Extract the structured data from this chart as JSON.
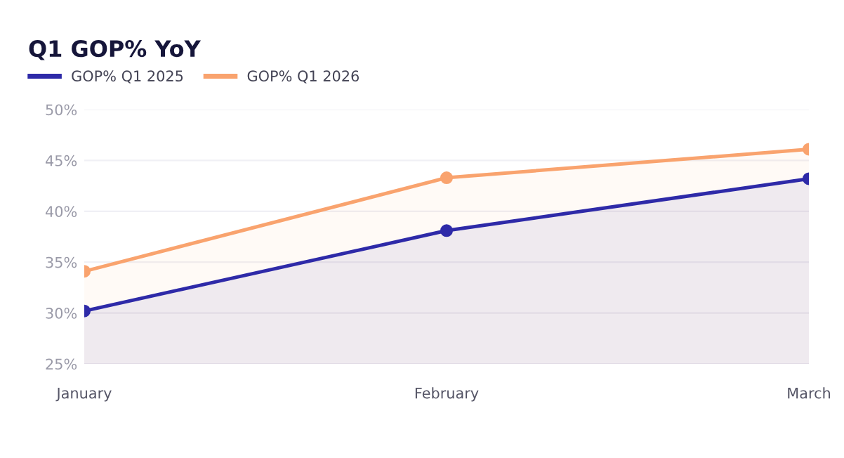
{
  "chart_data": {
    "type": "area",
    "title": "Q1 GOP% YoY",
    "categories": [
      "January",
      "February",
      "March"
    ],
    "series": [
      {
        "name": "GOP% Q1 2025",
        "color": "#2e2aa8",
        "values": [
          30.2,
          38.1,
          43.2
        ]
      },
      {
        "name": "GOP% Q1 2026",
        "color": "#f9a36e",
        "values": [
          34.1,
          43.3,
          46.1
        ]
      }
    ],
    "ylim": [
      25,
      50
    ],
    "yticks": [
      {
        "value": 25,
        "label": "25%"
      },
      {
        "value": 30,
        "label": "30%"
      },
      {
        "value": 35,
        "label": "35%"
      },
      {
        "value": 40,
        "label": "40%"
      },
      {
        "value": 45,
        "label": "45%"
      },
      {
        "value": 50,
        "label": "50%"
      }
    ],
    "grid": "y",
    "legend": "top left",
    "marker": "circle"
  }
}
